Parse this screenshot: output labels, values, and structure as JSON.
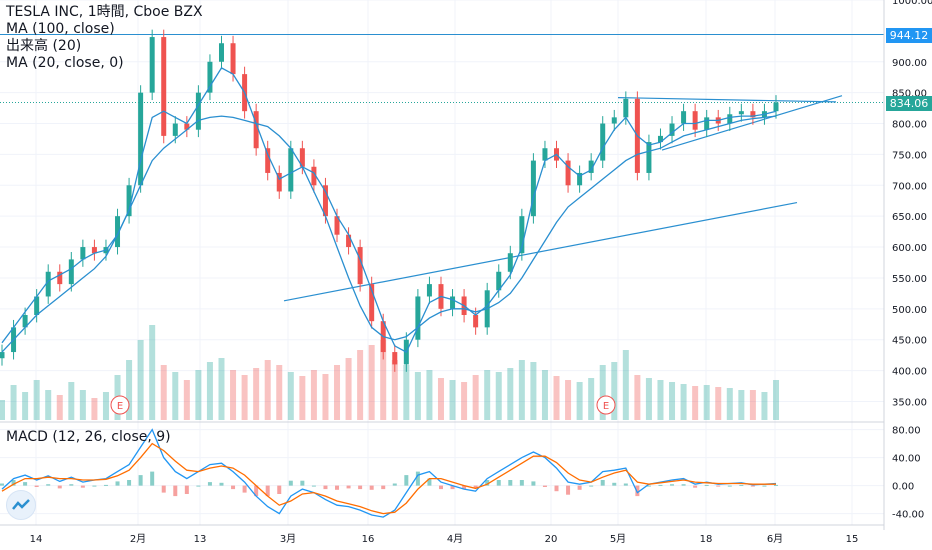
{
  "legend": {
    "title": "TESLA INC, 1時間, Cboe BZX",
    "ma100": "MA (100, close)",
    "volume": "出来高 (20)",
    "ma20": "MA (20, close, 0)"
  },
  "macd_legend": "MACD (12, 26, close, 9)",
  "price_tags": {
    "resistance": "944.12",
    "current": "834.06"
  },
  "earnings_marker": "E",
  "colors": {
    "up": "#26a69a",
    "down": "#ef5350",
    "ma": "#2a8fd0",
    "tag_blue": "#2196f3",
    "tag_teal": "#26a69a",
    "macd_blue": "#2196f3",
    "macd_orange": "#ff6d00"
  },
  "chart_data": [
    {
      "type": "line",
      "name": "price",
      "y_axis_ticks": [
        350,
        400,
        450,
        500,
        550,
        600,
        650,
        700,
        750,
        800,
        850,
        900,
        1000
      ],
      "ylim": [
        320,
        1000
      ],
      "x_tick_labels": [
        "14",
        "2月",
        "13",
        "3月",
        "16",
        "4月",
        "20",
        "5月",
        "18",
        "6月",
        "15"
      ],
      "series": [
        {
          "values": [
            430,
            470,
            490,
            520,
            560,
            540,
            580,
            600,
            590,
            600,
            650,
            700,
            850,
            940,
            780,
            800,
            790,
            850,
            900,
            930,
            880,
            820,
            760,
            720,
            690,
            760,
            730,
            700,
            650,
            620,
            600,
            540,
            480,
            430,
            410,
            450,
            520,
            540,
            500,
            520,
            490,
            470,
            530,
            560,
            590,
            650,
            740,
            760,
            740,
            700,
            720,
            740,
            800,
            810,
            840,
            720,
            770,
            780,
            800,
            820,
            790,
            810,
            800,
            815,
            820,
            810,
            820,
            834
          ]
        },
        {
          "values": [
            445,
            470,
            495,
            520,
            545,
            555,
            565,
            580,
            590,
            595,
            620,
            660,
            740,
            810,
            820,
            810,
            800,
            830,
            860,
            890,
            880,
            850,
            800,
            750,
            710,
            720,
            730,
            720,
            690,
            650,
            620,
            580,
            530,
            480,
            440,
            430,
            470,
            510,
            520,
            515,
            505,
            490,
            505,
            530,
            555,
            600,
            680,
            740,
            750,
            730,
            715,
            725,
            760,
            790,
            810,
            780,
            765,
            770,
            785,
            800,
            800,
            805,
            805,
            810,
            812,
            812,
            815,
            820
          ]
        },
        {
          "values": [
            430,
            450,
            470,
            490,
            505,
            520,
            535,
            550,
            565,
            585,
            620,
            660,
            700,
            740,
            760,
            775,
            790,
            805,
            810,
            812,
            810,
            805,
            800,
            795,
            780,
            760,
            730,
            690,
            650,
            600,
            550,
            505,
            470,
            455,
            450,
            455,
            470,
            485,
            495,
            500,
            500,
            495,
            500,
            510,
            525,
            550,
            580,
            610,
            640,
            665,
            680,
            695,
            710,
            725,
            740,
            750,
            755,
            760,
            770,
            780,
            785,
            790,
            795,
            800,
            805,
            808,
            810,
            812
          ]
        }
      ],
      "annotations": {
        "horizontal_levels": [
          944.12,
          834.06
        ],
        "upper_trend": [
          835,
          835
        ],
        "rising_trend_lines": true
      }
    },
    {
      "type": "bar",
      "name": "volume",
      "values": [
        20,
        35,
        28,
        40,
        30,
        25,
        38,
        30,
        22,
        28,
        45,
        60,
        80,
        95,
        55,
        48,
        40,
        50,
        58,
        62,
        50,
        45,
        52,
        60,
        55,
        48,
        44,
        50,
        46,
        55,
        62,
        70,
        75,
        80,
        60,
        55,
        48,
        50,
        42,
        40,
        38,
        45,
        50,
        48,
        52,
        60,
        58,
        50,
        44,
        40,
        38,
        42,
        55,
        58,
        70,
        45,
        42,
        40,
        38,
        36,
        34,
        35,
        33,
        32,
        30,
        30,
        28,
        40
      ]
    },
    {
      "type": "line",
      "name": "MACD",
      "y_axis_ticks": [
        -40,
        0,
        40,
        80
      ],
      "ylim": [
        -52,
        88
      ],
      "series": [
        {
          "values": [
            -5,
            10,
            15,
            8,
            14,
            6,
            12,
            5,
            8,
            10,
            20,
            30,
            55,
            80,
            40,
            20,
            10,
            20,
            30,
            32,
            20,
            5,
            -15,
            -30,
            -40,
            -15,
            -5,
            -10,
            -20,
            -28,
            -30,
            -35,
            -42,
            -45,
            -35,
            -10,
            15,
            20,
            5,
            0,
            -5,
            -8,
            10,
            20,
            30,
            40,
            48,
            40,
            25,
            5,
            2,
            5,
            20,
            22,
            25,
            -10,
            2,
            5,
            8,
            10,
            2,
            5,
            2,
            3,
            4,
            1,
            2,
            3
          ]
        },
        {
          "values": [
            -8,
            2,
            10,
            10,
            12,
            10,
            10,
            8,
            8,
            9,
            14,
            22,
            40,
            60,
            50,
            35,
            22,
            20,
            25,
            28,
            25,
            15,
            0,
            -15,
            -28,
            -22,
            -12,
            -10,
            -15,
            -22,
            -26,
            -30,
            -36,
            -40,
            -38,
            -25,
            -5,
            10,
            10,
            5,
            0,
            -4,
            2,
            12,
            22,
            32,
            42,
            42,
            33,
            18,
            8,
            5,
            12,
            18,
            22,
            5,
            2,
            4,
            6,
            8,
            5,
            4,
            3,
            3,
            3,
            2,
            2,
            2
          ]
        }
      ]
    }
  ]
}
